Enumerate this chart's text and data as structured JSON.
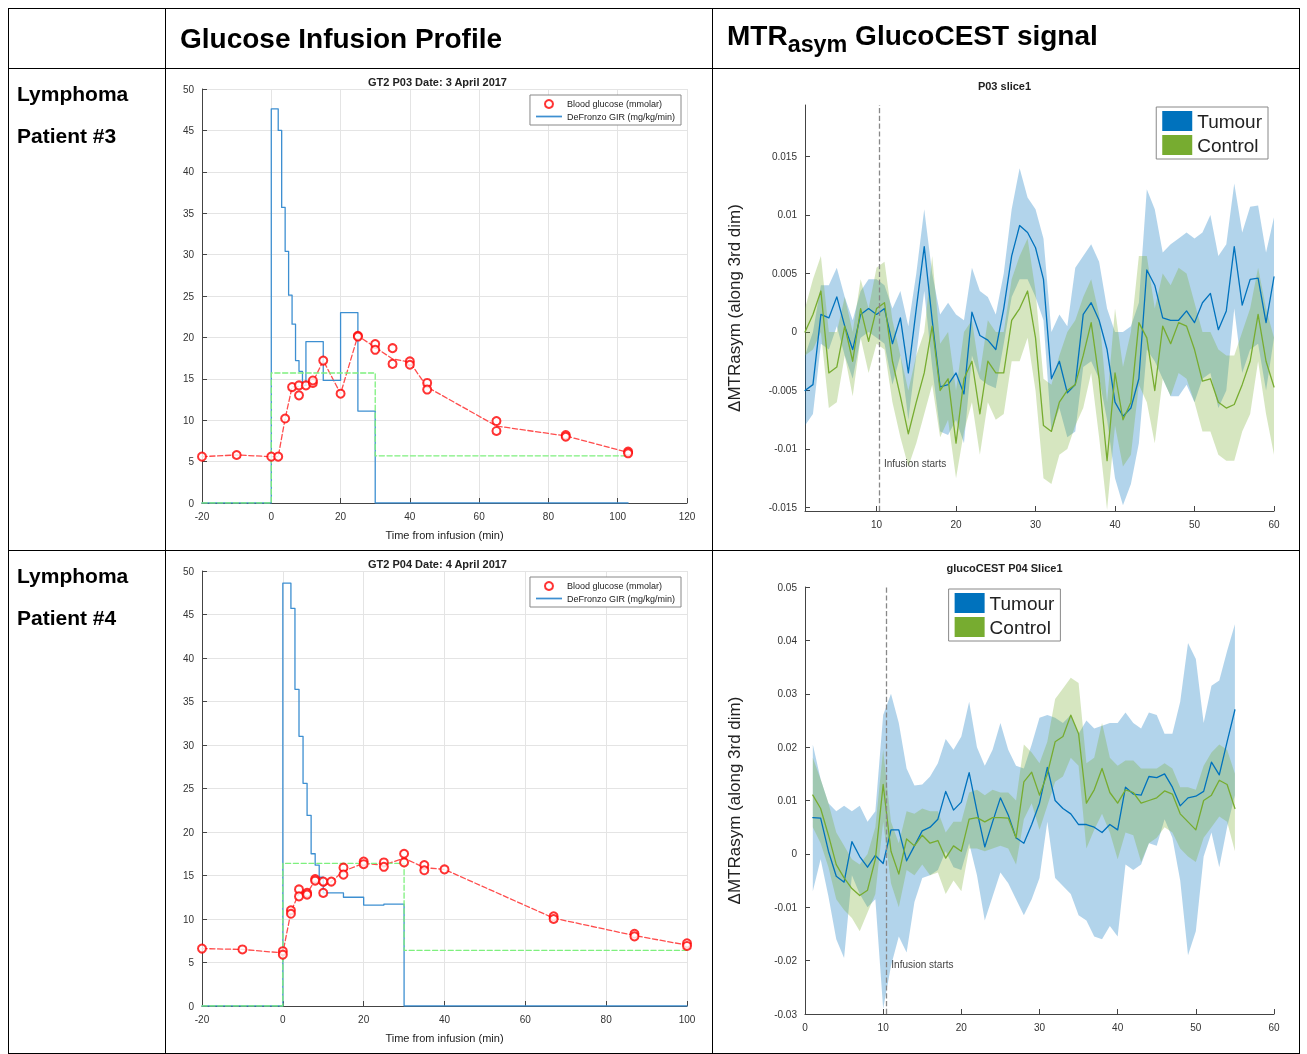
{
  "chart_data": [
    {
      "type": "line",
      "title": "GT2 P03 Date: 3 April 2017",
      "xlabel": "Time from infusion (min)",
      "annotations": [
        "Glucose Infusion Profile",
        "Lymphoma Patient #3"
      ],
      "xlim": [
        -20,
        120
      ],
      "xticks": [
        -20,
        0,
        20,
        40,
        60,
        80,
        100,
        120
      ],
      "ylim": [
        0,
        50
      ],
      "yticks": [
        0,
        5,
        10,
        15,
        20,
        25,
        30,
        35,
        40,
        45,
        50
      ],
      "grid": true,
      "legend": "top right",
      "series": [
        {
          "name": "Blood glucose (mmolar)",
          "type": "scatter",
          "marker": "circle",
          "color": "#ff0000",
          "x": [
            -20,
            -10,
            0,
            2,
            4,
            6,
            8,
            8,
            10,
            12,
            12,
            15,
            20,
            25,
            25,
            30,
            30,
            35,
            35,
            40,
            40,
            45,
            45,
            65,
            65,
            85,
            85,
            103,
            103
          ],
          "values": [
            5.6,
            5.8,
            5.6,
            5.6,
            10.2,
            14.0,
            14.2,
            13.0,
            14.2,
            14.5,
            14.8,
            17.2,
            13.2,
            20.2,
            20.1,
            19.2,
            18.5,
            18.7,
            16.8,
            17.1,
            16.7,
            14.5,
            13.7,
            9.9,
            8.7,
            8.2,
            8.0,
            6.2,
            6.0
          ]
        },
        {
          "type": "line",
          "marker": "none",
          "line_style": "dashed",
          "color": "#ff4d4d",
          "x": [
            -20,
            -10,
            0,
            2,
            4,
            6,
            8,
            10,
            12,
            15,
            20,
            25,
            30,
            35,
            40,
            45,
            65,
            85,
            103
          ],
          "values": [
            5.6,
            5.8,
            5.6,
            5.6,
            10.2,
            14.0,
            14.1,
            14.2,
            14.6,
            17.2,
            13.2,
            20.2,
            18.8,
            17.4,
            17.0,
            14.0,
            9.3,
            8.1,
            6.1
          ]
        },
        {
          "name": "DeFronzo GIR (mg/kg/min)",
          "type": "step",
          "marker": "none",
          "line_style": "solid",
          "color": "#3d8fd1",
          "x": [
            -20,
            0,
            2,
            3,
            4,
            5,
            6,
            7,
            8,
            9,
            10,
            15,
            20,
            25,
            30,
            103
          ],
          "values": [
            0,
            47.6,
            45,
            35.7,
            30.4,
            25.1,
            21.6,
            17.2,
            15.9,
            14.2,
            19.5,
            14.8,
            23,
            11.1,
            0,
            0
          ]
        },
        {
          "type": "step",
          "marker": "none",
          "line_style": "dashed",
          "color": "#7ef07e",
          "x": [
            -20,
            0,
            30,
            103
          ],
          "values": [
            0,
            15.7,
            5.7,
            5.7
          ]
        }
      ]
    },
    {
      "type": "line",
      "title": "P03 slice1",
      "ylabel": "ΔMTRasym (along 3rd dim)",
      "annotations": [
        "MTR$_{asym}$ GlucoCEST signal"
      ],
      "xlim": [
        1,
        60
      ],
      "xticks": [
        10,
        20,
        30,
        40,
        50,
        60
      ],
      "ylim": [
        -0.0153,
        0.0194
      ],
      "yticks": [
        -0.015,
        -0.01,
        -0.005,
        0,
        0.005,
        0.01,
        0.015
      ],
      "grid": false,
      "legend": "top right",
      "x": [
        1,
        2,
        3,
        4,
        5,
        6,
        7,
        8,
        9,
        10,
        11,
        12,
        13,
        14,
        15,
        16,
        17,
        18,
        19,
        20,
        21,
        22,
        23,
        24,
        25,
        26,
        27,
        28,
        29,
        30,
        31,
        32,
        33,
        34,
        35,
        36,
        37,
        38,
        39,
        40,
        41,
        42,
        43,
        44,
        45,
        46,
        47,
        48,
        49,
        50,
        51,
        52,
        53,
        54,
        55,
        56,
        57,
        58,
        59,
        60
      ],
      "ref_lines": [
        {
          "axis": "x",
          "value": 10.3,
          "label": "Infusion starts",
          "color": "#888888",
          "line_style": "dashed"
        }
      ],
      "series": [
        {
          "name": "Tumour",
          "color": "#0072bd",
          "marker": "none",
          "line_style": "solid",
          "values": [
            -0.005,
            -0.0045,
            0.0015,
            0.0012,
            0.003,
            0.0005,
            -0.0015,
            0.0015,
            0.002,
            0.0015,
            0.002,
            -0.001,
            0.0012,
            -0.0035,
            0.002,
            0.0073,
            0.001,
            -0.0047,
            -0.0045,
            -0.0035,
            -0.0053,
            0.0017,
            -0.0003,
            -0.0007,
            -0.0015,
            0.002,
            0.0065,
            0.0091,
            0.0085,
            0.0072,
            0.0045,
            -0.004,
            -0.0025,
            -0.0052,
            -0.0045,
            0.0015,
            0.0025,
            0.001,
            -0.0015,
            -0.006,
            -0.0072,
            -0.0065,
            -0.004,
            0.0053,
            0.004,
            0.0012,
            0.001,
            0.001,
            0.0018,
            0.0008,
            0.0025,
            0.0033,
            0.0002,
            0.0018,
            0.0073,
            0.0023,
            0.0045,
            0.0046,
            0.0008,
            0.0047
          ],
          "upper": [
            -0.002,
            0.0,
            0.004,
            0.004,
            0.0055,
            0.003,
            0.001,
            0.0035,
            0.0045,
            0.0045,
            0.004,
            0.002,
            0.0035,
            0.0005,
            0.005,
            0.0105,
            0.005,
            0.0015,
            0.0025,
            0.0015,
            0.001,
            0.0055,
            0.0035,
            0.003,
            0.0015,
            0.005,
            0.0105,
            0.014,
            0.0115,
            0.0105,
            0.008,
            0.0,
            0.0015,
            0.0005,
            0.0055,
            0.0065,
            0.0075,
            0.006,
            0.002,
            0.0,
            0.0,
            0.0005,
            0.0025,
            0.0122,
            0.0105,
            0.0068,
            0.0075,
            0.008,
            0.0085,
            0.008,
            0.0085,
            0.01,
            0.0065,
            0.0075,
            0.0127,
            0.0085,
            0.0107,
            0.0108,
            0.0068,
            0.0098
          ],
          "lower": [
            -0.008,
            -0.007,
            -0.001,
            -0.0015,
            0.0005,
            -0.002,
            -0.004,
            -0.0005,
            0.0,
            -0.0005,
            -0.001,
            -0.0045,
            -0.002,
            -0.0075,
            -0.002,
            0.0035,
            -0.003,
            -0.0085,
            -0.0088,
            -0.0075,
            -0.0095,
            -0.002,
            -0.004,
            -0.0045,
            -0.0048,
            -0.001,
            0.003,
            0.0045,
            0.0045,
            0.003,
            0.001,
            -0.0085,
            -0.0065,
            -0.009,
            -0.0085,
            -0.003,
            -0.0025,
            -0.004,
            -0.0075,
            -0.0125,
            -0.0148,
            -0.013,
            -0.0095,
            -0.0015,
            -0.0025,
            -0.004,
            -0.0055,
            -0.0055,
            -0.0045,
            -0.006,
            -0.004,
            -0.0035,
            -0.0065,
            -0.005,
            0.002,
            -0.0035,
            -0.0015,
            -0.001,
            -0.005,
            -0.0005
          ]
        },
        {
          "name": "Control",
          "color": "#77ac30",
          "marker": "none",
          "line_style": "solid",
          "values": [
            0,
            0.0015,
            0.0035,
            -0.0035,
            -0.003,
            0.0005,
            -0.0025,
            0.002,
            -0.0008,
            0.002,
            0.0025,
            -0.0025,
            -0.0055,
            -0.0087,
            -0.006,
            -0.0035,
            0.0005,
            -0.005,
            -0.004,
            -0.0095,
            -0.004,
            -0.0025,
            -0.007,
            -0.0025,
            -0.0035,
            -0.0035,
            0.001,
            0.002,
            0.0035,
            -0.0005,
            -0.008,
            -0.0085,
            -0.006,
            -0.005,
            -0.0045,
            -0.002,
            0.0008,
            -0.004,
            -0.011,
            -0.0035,
            -0.0075,
            -0.006,
            0.0008,
            -0.0005,
            -0.005,
            0.0005,
            -0.001,
            0.0008,
            0.0005,
            -0.0015,
            -0.0042,
            -0.004,
            -0.006,
            -0.0065,
            -0.0062,
            -0.0045,
            -0.0025,
            0.0015,
            -0.0025,
            -0.0047
          ],
          "upper": [
            0.002,
            0.0045,
            0.0065,
            0.0,
            0.0,
            0.003,
            0.0,
            0.0045,
            0.002,
            0.0055,
            0.006,
            0.001,
            -0.002,
            -0.005,
            -0.002,
            0.0,
            0.0065,
            -0.001,
            0.0,
            -0.005,
            0.0,
            0.001,
            -0.0035,
            0.001,
            0.0,
            0.0,
            0.0045,
            0.0065,
            0.008,
            0.0035,
            -0.004,
            -0.0045,
            -0.002,
            0.0,
            0.001,
            0.003,
            0.0045,
            0.0015,
            -0.006,
            0.002,
            -0.003,
            0.0,
            0.0065,
            0.0065,
            0.002,
            0.005,
            0.004,
            0.0055,
            0.005,
            0.0025,
            0.0,
            0.0,
            -0.0015,
            -0.002,
            -0.002,
            0.0,
            0.002,
            0.0055,
            0.002,
            -0.0005
          ],
          "lower": [
            -0.002,
            -0.0015,
            0.0,
            -0.0065,
            -0.006,
            -0.002,
            -0.0055,
            -0.0005,
            -0.0035,
            -0.001,
            -0.0015,
            -0.006,
            -0.009,
            -0.0115,
            -0.0095,
            -0.007,
            -0.0045,
            -0.009,
            -0.0075,
            -0.0125,
            -0.0085,
            -0.006,
            -0.0105,
            -0.006,
            -0.0075,
            -0.007,
            -0.0025,
            -0.0025,
            -0.0005,
            -0.005,
            -0.0125,
            -0.013,
            -0.0105,
            -0.01,
            -0.008,
            -0.0065,
            -0.0035,
            -0.009,
            -0.0152,
            -0.008,
            -0.0115,
            -0.0105,
            -0.0045,
            -0.006,
            -0.0095,
            -0.004,
            -0.0055,
            -0.0035,
            -0.004,
            -0.006,
            -0.0085,
            -0.0085,
            -0.0105,
            -0.011,
            -0.011,
            -0.0085,
            -0.007,
            -0.0025,
            -0.007,
            -0.0105
          ]
        }
      ]
    },
    {
      "type": "line",
      "title": "GT2 P04 Date: 4 April 2017",
      "xlabel": "Time from infusion (min)",
      "annotations": [
        "Lymphoma Patient #4"
      ],
      "xlim": [
        -20,
        100
      ],
      "xticks": [
        -20,
        0,
        20,
        40,
        60,
        80,
        100
      ],
      "ylim": [
        0,
        50
      ],
      "yticks": [
        0,
        5,
        10,
        15,
        20,
        25,
        30,
        35,
        40,
        45,
        50
      ],
      "grid": true,
      "legend": "top right",
      "series": [
        {
          "name": "Blood glucose (mmolar)",
          "type": "scatter",
          "marker": "circle",
          "color": "#ff0000",
          "x": [
            -20,
            -10,
            0,
            0,
            2,
            2,
            4,
            4,
            6,
            6,
            8,
            8,
            10,
            10,
            12,
            15,
            15,
            20,
            20,
            25,
            25,
            30,
            30,
            35,
            35,
            40,
            67,
            67,
            87,
            87,
            100,
            100
          ],
          "values": [
            6.6,
            6.5,
            6.3,
            5.9,
            11.0,
            10.6,
            13.4,
            12.6,
            13.0,
            12.8,
            14.6,
            14.4,
            14.3,
            13.0,
            14.3,
            15.9,
            15.1,
            16.6,
            16.3,
            16.5,
            16.0,
            17.5,
            16.5,
            16.2,
            15.6,
            15.7,
            10.3,
            10.0,
            8.3,
            8.0,
            7.2,
            6.9
          ]
        },
        {
          "type": "line",
          "marker": "none",
          "line_style": "dashed",
          "color": "#ff4d4d",
          "x": [
            -20,
            -10,
            0,
            2,
            4,
            6,
            8,
            10,
            12,
            15,
            20,
            25,
            30,
            35,
            40,
            67,
            87,
            100
          ],
          "values": [
            6.6,
            6.5,
            6.1,
            10.8,
            13.0,
            12.9,
            14.5,
            13.7,
            14.3,
            15.5,
            16.4,
            16.2,
            17.0,
            15.9,
            15.7,
            10.1,
            8.1,
            7.0
          ]
        },
        {
          "name": "DeFronzo GIR (mg/kg/min)",
          "type": "step",
          "marker": "none",
          "line_style": "solid",
          "color": "#3d8fd1",
          "x": [
            -20,
            0,
            2,
            3,
            4,
            5,
            6,
            7,
            8,
            9,
            10,
            15,
            20,
            25,
            30,
            100
          ],
          "values": [
            0,
            48.6,
            45.7,
            36.4,
            31,
            25.6,
            21.9,
            17.5,
            16.2,
            14.8,
            13,
            12.5,
            11.6,
            11.7,
            0,
            0
          ]
        },
        {
          "type": "step",
          "marker": "none",
          "line_style": "dashed",
          "color": "#7ef07e",
          "x": [
            -20,
            0,
            30,
            100
          ],
          "values": [
            0,
            16.4,
            6.4,
            6.4
          ]
        }
      ]
    },
    {
      "type": "line",
      "title": "glucoCEST P04 Slice1",
      "ylabel": "ΔMTRasym (along 3rd dim)",
      "xlim": [
        0,
        60
      ],
      "xticks": [
        0,
        10,
        20,
        30,
        40,
        50,
        60
      ],
      "ylim": [
        -0.03,
        0.05
      ],
      "yticks": [
        -0.03,
        -0.02,
        -0.01,
        0,
        0.01,
        0.02,
        0.03,
        0.04,
        0.05
      ],
      "grid": false,
      "legend": "top",
      "x": [
        1,
        2,
        3,
        4,
        5,
        6,
        7,
        8,
        9,
        10,
        11,
        12,
        13,
        14,
        15,
        16,
        17,
        18,
        19,
        20,
        21,
        22,
        23,
        24,
        25,
        26,
        27,
        28,
        29,
        30,
        31,
        32,
        33,
        34,
        35,
        36,
        37,
        38,
        39,
        40,
        41,
        42,
        43,
        44,
        45,
        46,
        47,
        48,
        49,
        50,
        51,
        52,
        53,
        54,
        55
      ],
      "ref_lines": [
        {
          "axis": "x",
          "value": 10.4,
          "label": "Infusion starts",
          "color": "#888888",
          "line_style": "dashed"
        }
      ],
      "series": [
        {
          "name": "Tumour",
          "color": "#0072bd",
          "marker": "none",
          "line_style": "solid",
          "values": [
            0.0068,
            0.0067,
            0.0005,
            -0.0042,
            -0.0053,
            0.0023,
            -0.0005,
            -0.0025,
            -0.0003,
            -0.0018,
            0.0045,
            0.0045,
            -0.0013,
            0.0015,
            0.0043,
            0.005,
            0.0065,
            0.0117,
            0.0082,
            0.0097,
            0.0152,
            0.008,
            0.0013,
            0.006,
            0.0105,
            0.0073,
            0.003,
            0.002,
            0.0055,
            0.0095,
            0.0162,
            0.01,
            0.0085,
            0.0075,
            0.0055,
            0.0055,
            0.005,
            0.004,
            0.0055,
            0.0045,
            0.0125,
            0.0112,
            0.011,
            0.0145,
            0.0143,
            0.015,
            0.0125,
            0.009,
            0.0105,
            0.0108,
            0.0117,
            0.0172,
            0.0148,
            0.021,
            0.027
          ],
          "upper": [
            0.0205,
            0.014,
            0.0095,
            0.008,
            0.009,
            0.008,
            0.009,
            0.006,
            0.008,
            0.026,
            0.03,
            0.0245,
            0.016,
            0.0128,
            0.013,
            0.0145,
            0.017,
            0.0215,
            0.0195,
            0.022,
            0.0285,
            0.02,
            0.0165,
            0.0195,
            0.0245,
            0.0195,
            0.0165,
            0.016,
            0.0205,
            0.0255,
            0.026,
            0.0255,
            0.0245,
            0.026,
            0.0225,
            0.025,
            0.0235,
            0.024,
            0.0245,
            0.0245,
            0.0265,
            0.0245,
            0.0235,
            0.0265,
            0.026,
            0.0225,
            0.0225,
            0.0285,
            0.0395,
            0.0365,
            0.0245,
            0.0315,
            0.0325,
            0.038,
            0.043
          ],
          "lower": [
            -0.007,
            -0.001,
            -0.008,
            -0.016,
            -0.0195,
            -0.004,
            -0.0075,
            -0.01,
            -0.0085,
            -0.029,
            -0.021,
            -0.0155,
            -0.0185,
            -0.009,
            -0.0045,
            -0.004,
            -0.003,
            0.0005,
            -0.0025,
            -0.003,
            0.002,
            -0.004,
            -0.0125,
            -0.008,
            -0.0035,
            -0.0055,
            -0.0085,
            -0.0115,
            -0.0085,
            -0.0045,
            0.006,
            -0.0045,
            -0.006,
            -0.0075,
            -0.0115,
            -0.0125,
            -0.0155,
            -0.016,
            -0.0135,
            -0.0155,
            -0.002,
            -0.003,
            -0.002,
            0.002,
            0.0015,
            0.0065,
            0.003,
            -0.005,
            -0.019,
            -0.0145,
            -0.0005,
            0.004,
            -0.0025,
            0.005,
            0.011
          ]
        },
        {
          "name": "Control",
          "color": "#77ac30",
          "marker": "none",
          "line_style": "solid",
          "values": [
            0.011,
            0.0085,
            0.0035,
            -0.002,
            -0.0045,
            -0.0065,
            -0.0078,
            -0.0068,
            -0.001,
            0.013,
            0.0005,
            -0.0038,
            0.0028,
            0.0015,
            0.0035,
            0.002,
            0.0025,
            -0.0008,
            0.0015,
            0.0005,
            0.0065,
            0.0068,
            0.006,
            0.0068,
            0.0068,
            0.0067,
            0.003,
            0.0135,
            0.0153,
            0.011,
            0.015,
            0.021,
            0.022,
            0.026,
            0.0225,
            0.0095,
            0.012,
            0.016,
            0.0115,
            0.0095,
            0.012,
            0.0115,
            0.0095,
            0.01,
            0.0105,
            0.0118,
            0.0112,
            0.0075,
            0.006,
            0.0045,
            0.01,
            0.011,
            0.0138,
            0.013,
            0.0085
          ],
          "upper": [
            0.018,
            0.014,
            0.0095,
            0.004,
            0.0015,
            -0.001,
            -0.002,
            0.0,
            0.005,
            0.0195,
            0.006,
            0.002,
            0.008,
            0.0075,
            0.0085,
            0.008,
            0.008,
            0.004,
            0.006,
            0.006,
            0.0115,
            0.012,
            0.011,
            0.012,
            0.0115,
            0.0115,
            0.01,
            0.0205,
            0.019,
            0.017,
            0.021,
            0.029,
            0.031,
            0.033,
            0.032,
            0.017,
            0.018,
            0.0245,
            0.018,
            0.0165,
            0.0175,
            0.0175,
            0.016,
            0.016,
            0.016,
            0.017,
            0.016,
            0.0125,
            0.0125,
            0.012,
            0.0165,
            0.019,
            0.0205,
            0.0195,
            0.015
          ],
          "lower": [
            0.005,
            0.002,
            -0.0025,
            -0.0085,
            -0.0105,
            -0.012,
            -0.0145,
            -0.011,
            -0.0075,
            0.006,
            -0.0055,
            -0.01,
            -0.003,
            -0.004,
            -0.002,
            -0.004,
            -0.0035,
            -0.0075,
            -0.005,
            -0.007,
            0.001,
            0.001,
            0.0005,
            0.001,
            0.0015,
            0.001,
            -0.002,
            0.0065,
            0.0095,
            0.0045,
            0.009,
            0.0135,
            0.0145,
            0.018,
            0.0165,
            0.001,
            0.0045,
            0.0075,
            0.004,
            -0.001,
            0.004,
            0.0035,
            -0.0015,
            0.002,
            0.003,
            0.005,
            0.004,
            0.001,
            -0.0005,
            -0.0015,
            0.003,
            0.005,
            0.007,
            0.006,
            0.0005
          ]
        }
      ]
    }
  ]
}
